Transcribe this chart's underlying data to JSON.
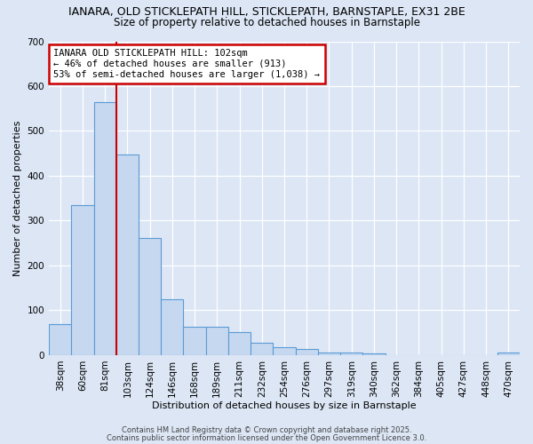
{
  "title_line1": "IANARA, OLD STICKLEPATH HILL, STICKLEPATH, BARNSTAPLE, EX31 2BE",
  "title_line2": "Size of property relative to detached houses in Barnstaple",
  "xlabel": "Distribution of detached houses by size in Barnstaple",
  "ylabel": "Number of detached properties",
  "bar_labels": [
    "38sqm",
    "60sqm",
    "81sqm",
    "103sqm",
    "124sqm",
    "146sqm",
    "168sqm",
    "189sqm",
    "211sqm",
    "232sqm",
    "254sqm",
    "276sqm",
    "297sqm",
    "319sqm",
    "340sqm",
    "362sqm",
    "384sqm",
    "405sqm",
    "427sqm",
    "448sqm",
    "470sqm"
  ],
  "bar_values": [
    70,
    335,
    565,
    447,
    262,
    125,
    63,
    63,
    52,
    28,
    18,
    14,
    5,
    5,
    3,
    0,
    0,
    0,
    0,
    0,
    5
  ],
  "bar_color": "#c5d8f0",
  "bar_edge_color": "#5b9bd5",
  "property_bin_index": 3,
  "annotation_text": "IANARA OLD STICKLEPATH HILL: 102sqm\n← 46% of detached houses are smaller (913)\n53% of semi-detached houses are larger (1,038) →",
  "annotation_box_color": "#ffffff",
  "annotation_edge_color": "#cc0000",
  "vline_color": "#cc0000",
  "background_color": "#dce6f5",
  "plot_bg_color": "#dce6f5",
  "footer_line1": "Contains HM Land Registry data © Crown copyright and database right 2025.",
  "footer_line2": "Contains public sector information licensed under the Open Government Licence 3.0.",
  "ylim": [
    0,
    700
  ],
  "yticks": [
    0,
    100,
    200,
    300,
    400,
    500,
    600,
    700
  ],
  "title_fontsize": 9,
  "subtitle_fontsize": 8.5,
  "axis_label_fontsize": 8,
  "tick_fontsize": 7.5,
  "annotation_fontsize": 7.5,
  "footer_fontsize": 6
}
